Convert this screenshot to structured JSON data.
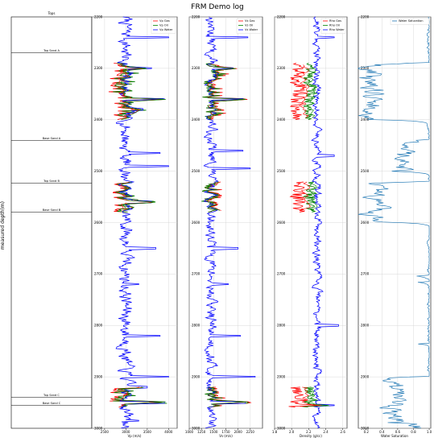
{
  "figure": {
    "title": "FRM Demo log",
    "ylabel": "measured depth(m)"
  },
  "chart_data": [
    {
      "type": "table",
      "panel": "tops",
      "title": "Tops",
      "ylim": [
        3000,
        2200
      ],
      "tops": [
        {
          "name": "Top Sand A",
          "depth": 2270
        },
        {
          "name": "Base Sand A",
          "depth": 2440
        },
        {
          "name": "Top Sand B",
          "depth": 2523
        },
        {
          "name": "Base Sand B",
          "depth": 2580
        },
        {
          "name": "Top Sand C",
          "depth": 2940
        },
        {
          "name": "Base Sand C",
          "depth": 2955
        }
      ]
    },
    {
      "type": "line",
      "panel": "vp",
      "xlabel": "Vp (m/s)",
      "xlim": [
        2200,
        4200
      ],
      "xticks": [
        "2500",
        "3000",
        "3500",
        "4000"
      ],
      "ylim": [
        3000,
        2200
      ],
      "yticks": [
        "2200",
        "2300",
        "2400",
        "2500",
        "2600",
        "2700",
        "2800",
        "2900",
        "3000"
      ],
      "legend_position": "top-right",
      "series": [
        {
          "name": "Vp Gas",
          "color": "#ff0000",
          "zones": [
            [
              2290,
              2400
            ],
            [
              2520,
              2580
            ],
            [
              2920,
              2960
            ]
          ],
          "shift": -120,
          "amp": 240
        },
        {
          "name": "Vp Oil",
          "color": "#008000",
          "zones": [
            [
              2290,
              2400
            ],
            [
              2520,
              2580
            ],
            [
              2920,
              2960
            ]
          ],
          "shift": -60,
          "amp": 200
        },
        {
          "name": "Vp Water",
          "color": "#0000ff",
          "base": 3000,
          "amp": 300,
          "spikes": [
            [
              2240,
              4000
            ],
            [
              2300,
              3600
            ],
            [
              2360,
              3900
            ],
            [
              2380,
              3400
            ],
            [
              2465,
              3800
            ],
            [
              2490,
              4000
            ],
            [
              2560,
              3600
            ],
            [
              2650,
              3700
            ],
            [
              2720,
              3300
            ],
            [
              2820,
              3800
            ],
            [
              2900,
              4000
            ],
            [
              2920,
              3500
            ],
            [
              2950,
              3900
            ],
            [
              2985,
              3300
            ]
          ],
          "seed": 7
        }
      ]
    },
    {
      "type": "line",
      "panel": "vs",
      "xlabel": "Vs (m/s)",
      "xlim": [
        1000,
        2500
      ],
      "xticks": [
        "1000",
        "1250",
        "1500",
        "1750",
        "2000",
        "2250"
      ],
      "ylim": [
        3000,
        2200
      ],
      "yticks": [
        "2200",
        "2300",
        "2400",
        "2500",
        "2600",
        "2700",
        "2800",
        "2900",
        "3000"
      ],
      "legend_position": "top-right",
      "series": [
        {
          "name": "Vs Gas",
          "color": "#ff0000",
          "zones": [
            [
              2290,
              2400
            ],
            [
              2520,
              2580
            ],
            [
              2920,
              2960
            ]
          ],
          "shift": 60,
          "amp": 160
        },
        {
          "name": "Vs Oil",
          "color": "#008000",
          "zones": [
            [
              2290,
              2400
            ],
            [
              2520,
              2580
            ],
            [
              2920,
              2960
            ]
          ],
          "shift": 30,
          "amp": 130
        },
        {
          "name": "Vs Water",
          "color": "#0000ff",
          "base": 1450,
          "amp": 200,
          "spikes": [
            [
              2240,
              2200
            ],
            [
              2300,
              1900
            ],
            [
              2360,
              2100
            ],
            [
              2460,
              2100
            ],
            [
              2495,
              2250
            ],
            [
              2650,
              2000
            ],
            [
              2720,
              1800
            ],
            [
              2820,
              2050
            ],
            [
              2900,
              2350
            ],
            [
              2950,
              2150
            ]
          ],
          "seed": 13
        }
      ]
    },
    {
      "type": "line",
      "panel": "rho",
      "xlabel": "Density (g/cc)",
      "xlim": [
        1.8,
        2.65
      ],
      "xticks": [
        "1.8",
        "2.0",
        "2.2",
        "2.4",
        "2.6"
      ],
      "ylim": [
        3000,
        2200
      ],
      "yticks": [
        "2200",
        "2300",
        "2400",
        "2500",
        "2600",
        "2700",
        "2800",
        "2900",
        "3000"
      ],
      "legend_position": "top-right",
      "series": [
        {
          "name": "Rho Gas",
          "color": "#ff0000",
          "zones": [
            [
              2290,
              2400
            ],
            [
              2520,
              2580
            ],
            [
              2920,
              2960
            ]
          ],
          "shift": -0.22,
          "amp": 0.08
        },
        {
          "name": "Rho Oil",
          "color": "#008000",
          "zones": [
            [
              2290,
              2400
            ],
            [
              2520,
              2580
            ],
            [
              2920,
              2960
            ]
          ],
          "shift": -0.08,
          "amp": 0.06
        },
        {
          "name": "Rho Water",
          "color": "#0000ff",
          "base": 2.3,
          "amp": 0.08,
          "spikes": [
            [
              2240,
              2.5
            ],
            [
              2470,
              2.5
            ],
            [
              2800,
              2.55
            ],
            [
              2955,
              2.5
            ]
          ],
          "seed": 21
        }
      ]
    },
    {
      "type": "line",
      "panel": "sw",
      "xlabel": "Water Saturation",
      "xlim": [
        0.1,
        1.02
      ],
      "xticks": [
        "0.2",
        "0.4",
        "0.6",
        "0.8",
        "1.0"
      ],
      "ylim": [
        3000,
        2200
      ],
      "yticks": [
        "2200",
        "2300",
        "2400",
        "2500",
        "2600",
        "2700",
        "2800",
        "2900",
        "3000"
      ],
      "legend_position": "top-right",
      "series": [
        {
          "name": "Water Saturation",
          "color": "#1f77b4",
          "seed": 33,
          "low_zones": [
            [
              2290,
              2330,
              0.25
            ],
            [
              2330,
              2400,
              0.3
            ],
            [
              2440,
              2500,
              0.65
            ],
            [
              2520,
              2600,
              0.3
            ],
            [
              2900,
              2990,
              0.55
            ]
          ]
        }
      ]
    }
  ]
}
